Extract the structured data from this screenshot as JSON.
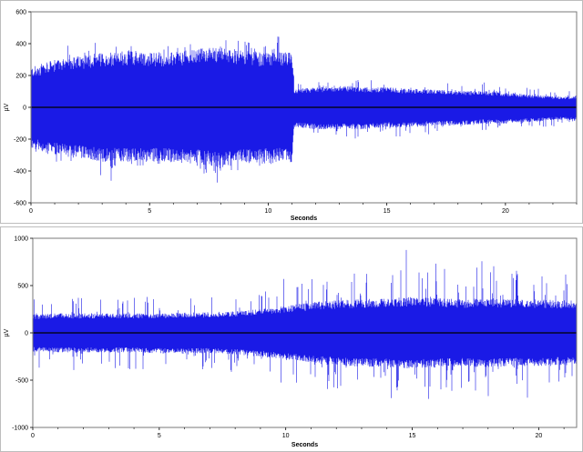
{
  "chart_data": [
    {
      "type": "line",
      "xlabel": "Seconds",
      "ylabel": "µV",
      "xlim": [
        0,
        23
      ],
      "ylim": [
        -600,
        600
      ],
      "x_ticks": [
        0,
        5,
        10,
        15,
        20
      ],
      "y_ticks": [
        -600,
        -400,
        -200,
        0,
        200,
        400,
        600
      ],
      "grid": false,
      "series_color": "#1a1ae6",
      "zero_line_color": "#000000",
      "series": [
        {
          "x": [
            0,
            1,
            2,
            3,
            4,
            5,
            6,
            7,
            8,
            9,
            10,
            11,
            11.1,
            12,
            13,
            14,
            15,
            16,
            17,
            18,
            19,
            20,
            21,
            22,
            23
          ],
          "y_max": [
            300,
            380,
            420,
            410,
            440,
            380,
            420,
            450,
            490,
            430,
            440,
            470,
            160,
            160,
            190,
            180,
            170,
            160,
            170,
            160,
            160,
            140,
            130,
            110,
            100
          ],
          "y_min": [
            -330,
            -350,
            -400,
            -570,
            -380,
            -370,
            -350,
            -400,
            -490,
            -390,
            -360,
            -330,
            -160,
            -180,
            -210,
            -200,
            -190,
            -180,
            -170,
            -160,
            -150,
            -150,
            -130,
            -120,
            -110
          ],
          "band_max": [
            220,
            260,
            280,
            300,
            310,
            300,
            300,
            320,
            330,
            310,
            300,
            300,
            100,
            110,
            120,
            110,
            110,
            100,
            100,
            90,
            90,
            80,
            70,
            60,
            60
          ],
          "band_min": [
            -230,
            -260,
            -280,
            -300,
            -300,
            -300,
            -300,
            -310,
            -330,
            -310,
            -300,
            -300,
            -110,
            -120,
            -120,
            -120,
            -110,
            -110,
            -100,
            -100,
            -90,
            -90,
            -80,
            -70,
            -70
          ]
        }
      ]
    },
    {
      "type": "line",
      "xlabel": "Seconds",
      "ylabel": "µV",
      "xlim": [
        0,
        21.5
      ],
      "ylim": [
        -1000,
        1000
      ],
      "x_ticks": [
        0,
        5,
        10,
        15,
        20
      ],
      "y_ticks": [
        -1000,
        -500,
        0,
        500,
        1000
      ],
      "grid": false,
      "series_color": "#1a1ae6",
      "zero_line_color": "#000000",
      "series": [
        {
          "x": [
            0,
            1,
            2,
            3,
            4,
            5,
            6,
            7,
            8,
            9,
            10,
            11,
            12,
            13,
            14,
            15,
            16,
            17,
            18,
            19,
            20,
            21,
            21.5
          ],
          "y_max": [
            360,
            400,
            380,
            370,
            400,
            380,
            390,
            380,
            420,
            450,
            600,
            640,
            700,
            680,
            760,
            990,
            870,
            720,
            780,
            700,
            760,
            680,
            650
          ],
          "y_min": [
            -380,
            -400,
            -390,
            -380,
            -400,
            -450,
            -390,
            -420,
            -430,
            -460,
            -580,
            -620,
            -640,
            -670,
            -700,
            -740,
            -690,
            -650,
            -720,
            -680,
            -690,
            -620,
            -600
          ],
          "band_max": [
            170,
            180,
            180,
            180,
            180,
            180,
            190,
            190,
            200,
            220,
            250,
            280,
            300,
            310,
            320,
            330,
            320,
            310,
            320,
            310,
            310,
            300,
            300
          ],
          "band_min": [
            -170,
            -180,
            -180,
            -180,
            -180,
            -190,
            -190,
            -190,
            -200,
            -220,
            -250,
            -280,
            -300,
            -310,
            -320,
            -330,
            -320,
            -310,
            -320,
            -310,
            -310,
            -300,
            -300
          ]
        }
      ]
    }
  ]
}
